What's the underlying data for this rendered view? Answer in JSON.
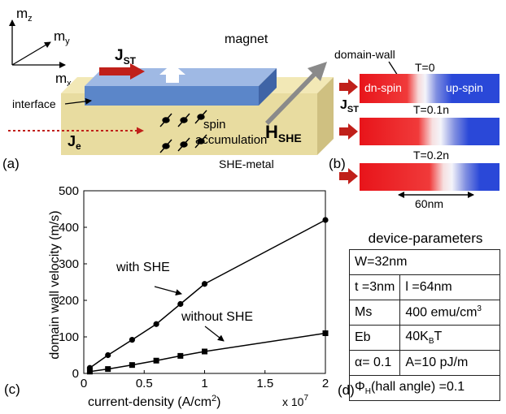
{
  "panel_a": {
    "label": "(a)",
    "axes": {
      "mz": "m",
      "mz_sub": "z",
      "my": "m",
      "my_sub": "y",
      "mx": "m",
      "mx_sub": "x"
    },
    "magnet": "magnet",
    "jst": "J",
    "jst_sub": "ST",
    "interface": "interface",
    "spin": "spin",
    "accumulation": "accumulation",
    "hshe": "H",
    "hshe_sub": "SHE",
    "je": "J",
    "je_sub": "e",
    "she_metal": "SHE-metal",
    "colors": {
      "magnet": "#5b86c9",
      "she_metal": "#e8dca0",
      "current": "#c0201a",
      "field_arrow": "#8a8a8a"
    }
  },
  "panel_b": {
    "label": "(b)",
    "domain_wall": "domain-wall",
    "t0": "T=0",
    "t1": "T=0.1n",
    "t2": "T=0.2n",
    "dn_spin": "dn-spin",
    "up_spin": "up-spin",
    "jst": "J",
    "jst_sub": "ST",
    "scale": "60nm",
    "colors": {
      "down": "#e8141a",
      "up": "#2a48d8"
    }
  },
  "panel_c": {
    "label": "(c)",
    "annotation_with": "with SHE",
    "annotation_without": "without SHE",
    "x_multiplier": "x 10",
    "x_multiplier_exp": "7"
  },
  "chart_data": {
    "type": "line",
    "xlabel": "current-density (A/cm",
    "xlabel_sup": "2",
    "xlabel_end": ")",
    "ylabel": "domain wall velocity (m/s)",
    "xlim": [
      0,
      2
    ],
    "ylim": [
      0,
      500
    ],
    "x_ticks": [
      "0",
      "0.5",
      "1",
      "1.5",
      "2"
    ],
    "y_ticks": [
      "0",
      "100",
      "200",
      "300",
      "400",
      "500"
    ],
    "series": [
      {
        "name": "with SHE",
        "marker": "circle",
        "x": [
          0.05,
          0.2,
          0.4,
          0.6,
          0.8,
          1.0,
          2.0
        ],
        "y": [
          15,
          50,
          92,
          135,
          190,
          245,
          420
        ]
      },
      {
        "name": "without SHE",
        "marker": "square",
        "x": [
          0.05,
          0.2,
          0.4,
          0.6,
          0.8,
          1.0,
          2.0
        ],
        "y": [
          5,
          12,
          23,
          35,
          48,
          60,
          110
        ]
      }
    ]
  },
  "panel_d": {
    "label": "(d)",
    "title": "device-parameters",
    "W": "W=32nm",
    "t": "t =3nm",
    "l": "l =64nm",
    "ms_key": "Ms",
    "ms_val": "400 emu/cm",
    "ms_sup": "3",
    "eb_key": "Eb",
    "eb_val": "40K",
    "eb_sub": "B",
    "eb_end": "T",
    "alpha": "α= 0.1",
    "A": "A=10 pJ/m",
    "phi": "Φ",
    "phi_sub": "H",
    "phi_rest": "(hall angle) =0.1"
  }
}
